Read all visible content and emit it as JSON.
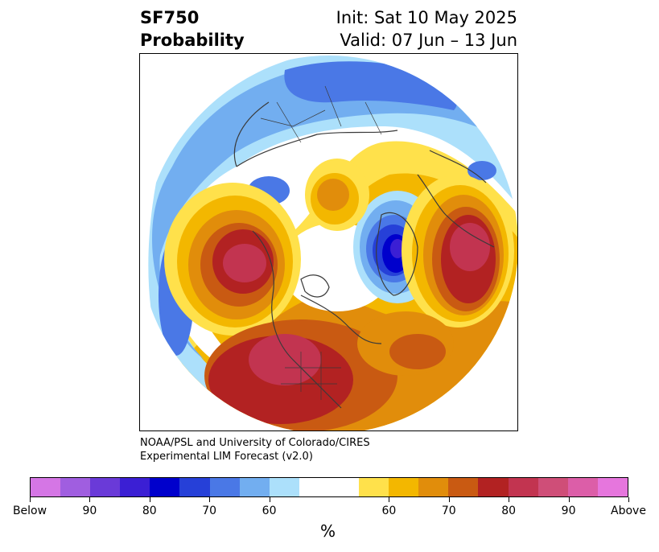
{
  "header": {
    "title_line1": "SF750",
    "title_line2": "Probability",
    "init": "Init: Sat 10 May 2025",
    "valid": "Valid: 07 Jun – 13 Jun"
  },
  "credit": {
    "line1": "NOAA/PSL and University of Colorado/CIRES",
    "line2": "Experimental LIM Forecast (v2.0)"
  },
  "colorbar": {
    "unit": "%",
    "colors": [
      "#d576e5",
      "#a05ee0",
      "#6a3ad8",
      "#3b1fd4",
      "#0000cc",
      "#2640d8",
      "#4a78e6",
      "#72aef0",
      "#ace0fb",
      "#ffffff",
      "#ffffff",
      "#ffe14b",
      "#f3b700",
      "#e18d0b",
      "#c95a12",
      "#b22222",
      "#c23450",
      "#cf4e78",
      "#dc5ea8",
      "#e676dd"
    ],
    "tick_labels": [
      "Below",
      "90",
      "80",
      "70",
      "60",
      "60",
      "70",
      "80",
      "90",
      "Above"
    ]
  },
  "map": {
    "projection": "north-polar-stereographic",
    "variable": "SF750 probability",
    "features": [
      {
        "region": "Arctic / northern Asia",
        "category": "below",
        "level": "60-70"
      },
      {
        "region": "Eastern Siberia",
        "category": "below",
        "level": "70"
      },
      {
        "region": "Greenland / Baffin Bay",
        "category": "below",
        "level": "80-90"
      },
      {
        "region": "Gulf of Alaska",
        "category": "above",
        "level": "80"
      },
      {
        "region": "Western United States",
        "category": "above",
        "level": "80"
      },
      {
        "region": "Eastern Europe / Western Russia",
        "category": "above",
        "level": "80"
      },
      {
        "region": "North Atlantic",
        "category": "above",
        "level": "60-70"
      },
      {
        "region": "North Pacific (west)",
        "category": "below",
        "level": "60-70"
      }
    ]
  }
}
